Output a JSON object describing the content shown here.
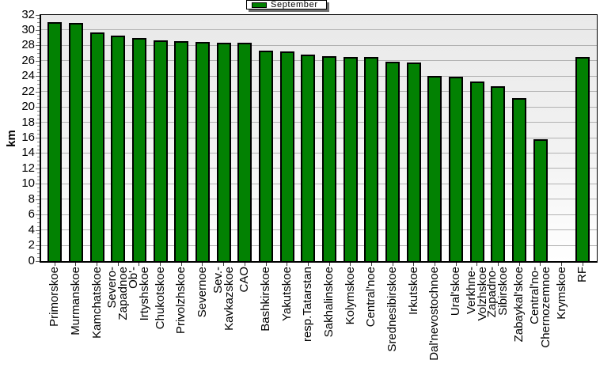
{
  "chart_data": {
    "type": "bar",
    "legend": "September",
    "ylabel": "km",
    "ylim": [
      0,
      32
    ],
    "ytick_step": 2,
    "grid": true,
    "legend_position": "top",
    "bar_color": "#028102",
    "bar_border_color": "#000000",
    "categories": [
      "Primorskoe",
      "Murmanskoe",
      "Kamchatskoe",
      "Severo-\nZapadnoe",
      "Ob'-\nIrtyshskoe",
      "Chukotskoe",
      "Privolzhskoe",
      "Severnoe",
      "Sev.-\nKavkazskoe",
      "CAO",
      "Bashkirskoe",
      "Yakutskoe",
      "resp.Tatarstan",
      "Sakhalinskoe",
      "Kolymskoe",
      "Central'noe",
      "Srednesibirskoe",
      "Irkutskoe",
      "Dal'nevostochnoe",
      "Ural'skoe",
      "Verkhne-\nVolzhskoe",
      "Zapadno-\nSibirskoe",
      "Zabaykal'skoe",
      "Central'no-\nChernozemnoe",
      "Krymskoe",
      "RF"
    ],
    "values": [
      31.1,
      31.0,
      29.7,
      29.35,
      29.0,
      28.7,
      28.6,
      28.5,
      28.45,
      28.4,
      27.4,
      27.3,
      26.85,
      26.7,
      26.5,
      26.5,
      25.9,
      25.8,
      24.1,
      24.0,
      23.4,
      22.75,
      21.2,
      15.85,
      0,
      26.55
    ],
    "yticks": [
      0,
      2,
      4,
      6,
      8,
      10,
      12,
      14,
      16,
      18,
      20,
      22,
      24,
      26,
      28,
      30,
      32
    ]
  }
}
